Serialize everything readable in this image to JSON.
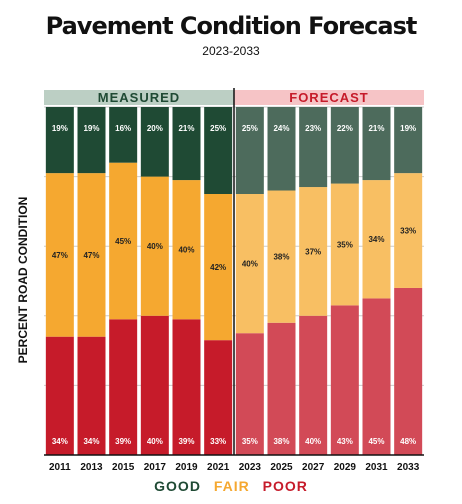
{
  "chart_data": {
    "type": "bar",
    "stacked": true,
    "title": "Pavement Condition Forecast",
    "subtitle": "2023-2033",
    "ylabel": "PERCENT ROAD CONDITION",
    "ylim": [
      0,
      100
    ],
    "grid": true,
    "categories": [
      "2011",
      "2013",
      "2015",
      "2017",
      "2019",
      "2021",
      "2023",
      "2025",
      "2027",
      "2029",
      "2031",
      "2033"
    ],
    "groups": [
      {
        "label": "MEASURED",
        "from": 0,
        "to": 5
      },
      {
        "label": "FORECAST",
        "from": 6,
        "to": 11
      }
    ],
    "series": [
      {
        "name": "POOR",
        "values": [
          34,
          34,
          39,
          40,
          39,
          33,
          35,
          38,
          40,
          43,
          45,
          48
        ],
        "labels": [
          "34%",
          "34%",
          "39%",
          "40%",
          "39%",
          "33%",
          "35%",
          "38%",
          "40%",
          "43%",
          "45%",
          "48%"
        ]
      },
      {
        "name": "FAIR",
        "values": [
          47,
          47,
          45,
          40,
          40,
          42,
          40,
          38,
          37,
          35,
          34,
          33
        ],
        "labels": [
          "47%",
          "47%",
          "45%",
          "40%",
          "40%",
          "42%",
          "40%",
          "38%",
          "37%",
          "35%",
          "34%",
          "33%"
        ]
      },
      {
        "name": "GOOD",
        "values": [
          19,
          19,
          16,
          20,
          21,
          25,
          25,
          24,
          23,
          22,
          21,
          19
        ],
        "labels": [
          "19%",
          "19%",
          "16%",
          "20%",
          "21%",
          "25%",
          "25%",
          "24%",
          "23%",
          "22%",
          "21%",
          "19%"
        ]
      }
    ]
  },
  "legend": {
    "good": "GOOD",
    "fair": "FAIR",
    "poor": "POOR"
  },
  "colors": {
    "good": "#1f4a34",
    "fair": "#f5a830",
    "poor": "#c61b2a",
    "good_forecast": "#4d6b5c",
    "fair_forecast": "#f8bf63",
    "poor_forecast": "#d24a57",
    "measured_header": "#bccfc4",
    "forecast_header": "#f6c4c6",
    "measured_header_text": "#1f4a34",
    "forecast_header_text": "#c61b2a",
    "legend_good": "#1f4a34",
    "legend_fair": "#f5a830",
    "legend_poor": "#c61b2a"
  }
}
